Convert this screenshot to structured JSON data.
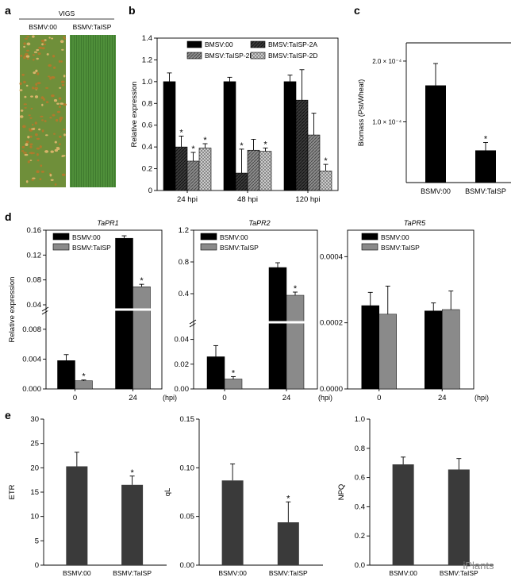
{
  "panel_letters": [
    "a",
    "b",
    "c",
    "d",
    "e"
  ],
  "panel_a": {
    "header": "VIGS",
    "label_left": "BSMV:00",
    "label_right": "BSMV:TaISP"
  },
  "watermark": "iPlants",
  "colors": {
    "black": "#000000",
    "dark_gray": "#3a3a3a",
    "gray": "#8a8a8a",
    "leaf_green": "#4f8f3a",
    "rust": "#a8772c"
  },
  "chart_data": [
    {
      "id": "b",
      "type": "bar",
      "ylabel": "Relative expression",
      "ylim": [
        0,
        1.4
      ],
      "yticks": [
        "0",
        "0.2",
        "0.4",
        "0.6",
        "0.8",
        "1.0",
        "1.2",
        "1.4"
      ],
      "categories": [
        "24 hpi",
        "48 hpi",
        "120 hpi"
      ],
      "legend_placement": "top",
      "series": [
        {
          "name": "BMSV:00",
          "style": "black",
          "values": [
            1.0,
            1.0,
            1.0
          ],
          "errors": [
            0.08,
            0.04,
            0.06
          ],
          "sig": [
            false,
            false,
            false
          ]
        },
        {
          "name": "BMSV:TaISP-2A",
          "style": "hatch-dark",
          "values": [
            0.4,
            0.16,
            0.83
          ],
          "errors": [
            0.1,
            0.22,
            0.28
          ],
          "sig": [
            true,
            true,
            false
          ]
        },
        {
          "name": "BMSV:TaISP-2B",
          "style": "hatch-mid",
          "values": [
            0.27,
            0.37,
            0.51
          ],
          "errors": [
            0.08,
            0.1,
            0.2
          ],
          "sig": [
            true,
            false,
            false
          ]
        },
        {
          "name": "BMSV:TaISP-2D",
          "style": "check",
          "values": [
            0.39,
            0.36,
            0.18
          ],
          "errors": [
            0.04,
            0.03,
            0.06
          ],
          "sig": [
            true,
            true,
            true
          ]
        }
      ]
    },
    {
      "id": "c",
      "type": "bar",
      "ylabel": "Biomass (Pst/Wheat)",
      "ylim": [
        0,
        0.00023
      ],
      "yticks": [
        "1.0 × 10⁻⁴",
        "2.0 × 10⁻⁴"
      ],
      "categories": [
        "BSMV:00",
        "BSMV:TaISP"
      ],
      "values": [
        0.00016,
        5.3e-05
      ],
      "errors": [
        3.6e-05,
        1.3e-05
      ],
      "sig": [
        false,
        true
      ]
    },
    {
      "id": "d1",
      "type": "bar",
      "title": "TaPR1",
      "ylabel": "Relative expression",
      "categories": [
        "0",
        "24"
      ],
      "xunit": "(hpi)",
      "broken_axis": true,
      "ylim_low": [
        0,
        0.01
      ],
      "yticks_low": [
        "0.000",
        "0.004",
        "0.008"
      ],
      "ylim_high": [
        0.04,
        0.16
      ],
      "yticks_high": [
        "0.04",
        "0.08",
        "0.12",
        "0.16"
      ],
      "series": [
        {
          "name": "BSMV:00",
          "values": [
            0.0038,
            0.147
          ],
          "errors": [
            0.0008,
            0.004
          ],
          "sig": [
            false,
            false
          ]
        },
        {
          "name": "BSMV:TaISP",
          "values": [
            0.0011,
            0.069
          ],
          "errors": [
            0.0001,
            0.004
          ],
          "sig": [
            true,
            true
          ]
        }
      ]
    },
    {
      "id": "d2",
      "type": "bar",
      "title": "TaPR2",
      "ylabel": "",
      "categories": [
        "0",
        "24"
      ],
      "xunit": "(hpi)",
      "broken_axis": true,
      "ylim_low": [
        0,
        0.05
      ],
      "yticks_low": [
        "0.00",
        "0.02",
        "0.04"
      ],
      "ylim_high": [
        0.1,
        1.2
      ],
      "yticks_high": [
        "0.4",
        "0.8",
        "1.2"
      ],
      "series": [
        {
          "name": "BSMV:00",
          "values": [
            0.026,
            0.73
          ],
          "errors": [
            0.009,
            0.06
          ],
          "sig": [
            false,
            false
          ]
        },
        {
          "name": "BSMV:TaISP",
          "values": [
            0.008,
            0.38
          ],
          "errors": [
            0.002,
            0.04
          ],
          "sig": [
            true,
            true
          ]
        }
      ]
    },
    {
      "id": "d3",
      "type": "bar",
      "title": "TaPR5",
      "ylabel": "",
      "categories": [
        "0",
        "24"
      ],
      "xunit": "(hpi)",
      "ylim": [
        0,
        0.00048
      ],
      "yticks": [
        "0.0000",
        "0.0002",
        "0.0004"
      ],
      "series": [
        {
          "name": "BSMV:00",
          "values": [
            0.000252,
            0.000236
          ],
          "errors": [
            4e-05,
            2.4e-05
          ],
          "sig": [
            false,
            false
          ]
        },
        {
          "name": "BSMV:TaISP",
          "values": [
            0.000226,
            0.00024
          ],
          "errors": [
            8.5e-05,
            5.6e-05
          ],
          "sig": [
            false,
            false
          ]
        }
      ]
    },
    {
      "id": "e1",
      "type": "bar",
      "ylabel": "ETR",
      "ylim": [
        0,
        30
      ],
      "yticks": [
        "0",
        "5",
        "10",
        "15",
        "20",
        "25",
        "30"
      ],
      "categories": [
        "BSMV:00",
        "BSMV:TaISP"
      ],
      "values": [
        20.3,
        16.5
      ],
      "errors": [
        2.9,
        1.8
      ],
      "sig": [
        false,
        true
      ]
    },
    {
      "id": "e2",
      "type": "bar",
      "ylabel": "qL",
      "ylim": [
        0,
        0.15
      ],
      "yticks": [
        "0.00",
        "0.05",
        "0.10",
        "0.15"
      ],
      "categories": [
        "BSMV:00",
        "BSMV:TaISP"
      ],
      "values": [
        0.087,
        0.044
      ],
      "errors": [
        0.017,
        0.021
      ],
      "sig": [
        false,
        true
      ]
    },
    {
      "id": "e3",
      "type": "bar",
      "ylabel": "NPQ",
      "ylim": [
        0,
        1.0
      ],
      "yticks": [
        "0.0",
        "0.2",
        "0.4",
        "0.6",
        "0.8",
        "1.0"
      ],
      "categories": [
        "BSMV:00",
        "BSMV:TaISP"
      ],
      "values": [
        0.69,
        0.655
      ],
      "errors": [
        0.05,
        0.075
      ],
      "sig": [
        false,
        false
      ]
    }
  ]
}
